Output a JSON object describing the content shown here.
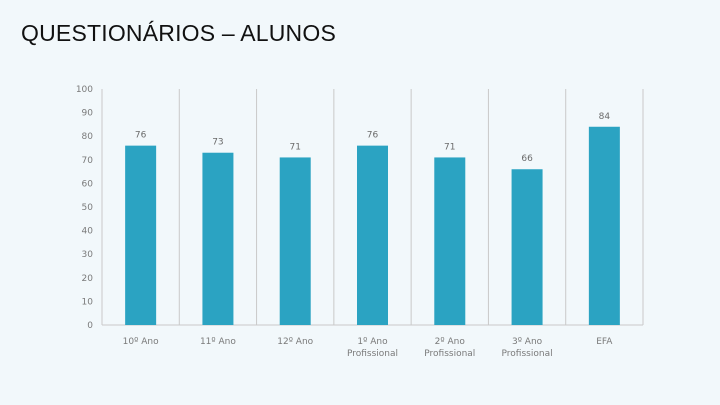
{
  "slide": {
    "title": "QUESTIONÁRIOS – ALUNOS"
  },
  "chart_data": {
    "type": "bar",
    "categories": [
      [
        "10º Ano"
      ],
      [
        "11º Ano"
      ],
      [
        "12º Ano"
      ],
      [
        "1º Ano",
        "Profissional"
      ],
      [
        "2º Ano",
        "Profissional"
      ],
      [
        "3º Ano",
        "Profissional"
      ],
      [
        "EFA"
      ]
    ],
    "values": [
      76,
      73,
      71,
      76,
      71,
      66,
      84
    ],
    "yticks": [
      0,
      10,
      20,
      30,
      40,
      50,
      60,
      70,
      80,
      90,
      100
    ],
    "ylim": [
      0,
      100
    ],
    "grid": "vertical-separators",
    "legend": "none",
    "colors": {
      "bar": "#2ba3c2",
      "grid": "#c9c9c9"
    }
  }
}
